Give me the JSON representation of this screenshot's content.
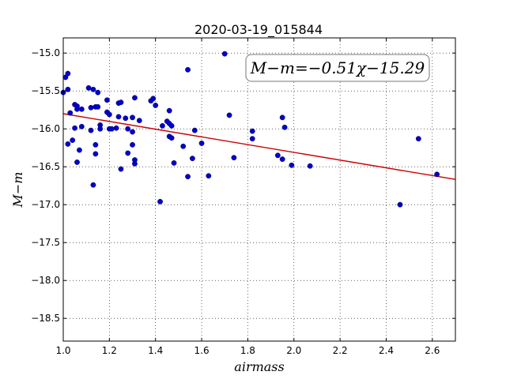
{
  "chart_data": {
    "type": "scatter",
    "title": "2020-03-19_015844",
    "xlabel": "airmass",
    "ylabel": "M−m",
    "xlim": [
      1.0,
      2.7
    ],
    "ylim": [
      -14.8,
      -18.8
    ],
    "y_inverted": true,
    "grid": true,
    "grid_style": "dotted",
    "x_ticks": [
      "1.0",
      "1.2",
      "1.4",
      "1.6",
      "1.8",
      "2.0",
      "2.2",
      "2.4",
      "2.6"
    ],
    "x_tick_values": [
      1.0,
      1.2,
      1.4,
      1.6,
      1.8,
      2.0,
      2.2,
      2.4,
      2.6
    ],
    "y_ticks": [
      "−15.0",
      "−15.5",
      "−16.0",
      "−16.5",
      "−17.0",
      "−17.5",
      "−18.0",
      "−18.5"
    ],
    "y_tick_values": [
      -15.0,
      -15.5,
      -16.0,
      -16.5,
      -17.0,
      -17.5,
      -18.0,
      -18.5
    ],
    "annotation": "M−m=−0.51χ−15.29",
    "series": [
      {
        "type": "scatter",
        "color": "#0000cc",
        "x": [
          1.0,
          1.01,
          1.02,
          1.02,
          1.02,
          1.03,
          1.04,
          1.05,
          1.05,
          1.06,
          1.06,
          1.06,
          1.07,
          1.08,
          1.08,
          1.11,
          1.12,
          1.12,
          1.13,
          1.13,
          1.14,
          1.14,
          1.14,
          1.15,
          1.15,
          1.16,
          1.16,
          1.19,
          1.19,
          1.2,
          1.2,
          1.21,
          1.23,
          1.24,
          1.24,
          1.25,
          1.25,
          1.27,
          1.28,
          1.28,
          1.3,
          1.3,
          1.3,
          1.31,
          1.31,
          1.31,
          1.33,
          1.38,
          1.39,
          1.4,
          1.42,
          1.43,
          1.45,
          1.46,
          1.46,
          1.46,
          1.47,
          1.47,
          1.48,
          1.52,
          1.54,
          1.54,
          1.56,
          1.57,
          1.6,
          1.63,
          1.7,
          1.72,
          1.74,
          1.82,
          1.82,
          1.93,
          1.95,
          1.95,
          1.96,
          1.99,
          2.07,
          2.46,
          2.54,
          2.62
        ],
        "y": [
          -15.52,
          -15.32,
          -15.27,
          -15.48,
          -16.2,
          -15.79,
          -16.15,
          -15.68,
          -15.99,
          -15.7,
          -15.74,
          -16.44,
          -16.28,
          -15.74,
          -15.97,
          -15.46,
          -15.72,
          -16.02,
          -15.48,
          -16.74,
          -15.71,
          -16.33,
          -16.21,
          -15.52,
          -15.71,
          -15.95,
          -16.0,
          -15.62,
          -15.78,
          -15.81,
          -16.0,
          -16.0,
          -15.99,
          -15.66,
          -15.84,
          -15.65,
          -16.53,
          -15.86,
          -16.0,
          -16.32,
          -15.85,
          -16.04,
          -16.21,
          -15.59,
          -16.41,
          -16.46,
          -15.89,
          -15.63,
          -15.6,
          -15.69,
          -16.96,
          -15.96,
          -15.9,
          -15.93,
          -15.76,
          -16.1,
          -16.12,
          -15.96,
          -16.45,
          -16.23,
          -15.22,
          -16.63,
          -16.39,
          -16.02,
          -16.19,
          -16.62,
          -15.01,
          -15.82,
          -16.38,
          -16.03,
          -16.13,
          -16.35,
          -15.85,
          -16.4,
          -15.98,
          -16.48,
          -16.49,
          -17.0,
          -16.13,
          -16.6
        ]
      },
      {
        "type": "line",
        "color": "#cc0000",
        "x": [
          1.0,
          2.7
        ],
        "y": [
          -15.8,
          -16.667
        ]
      }
    ]
  }
}
